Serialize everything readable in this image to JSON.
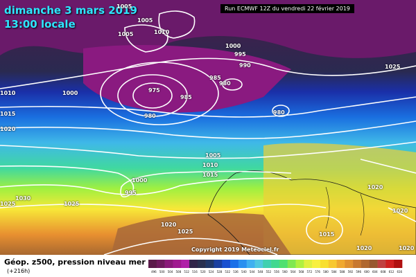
{
  "header": {
    "date_line": "dimanche 3 mars 2019",
    "time_line": "13:00 locale",
    "run_info": "Run ECMWF 12Z du vendredi 22 février 2019"
  },
  "map": {
    "copyright": "Copyright 2019 Meteociel.fr",
    "isobar_labels": [
      {
        "text": "1005"
      },
      {
        "text": "1005"
      },
      {
        "text": "1010"
      },
      {
        "text": "1005"
      },
      {
        "text": "1000"
      },
      {
        "text": "995"
      },
      {
        "text": "990"
      },
      {
        "text": "985"
      },
      {
        "text": "1000"
      },
      {
        "text": "975"
      },
      {
        "text": "985"
      },
      {
        "text": "980"
      },
      {
        "text": "980"
      },
      {
        "text": "980"
      },
      {
        "text": "1010"
      },
      {
        "text": "1015"
      },
      {
        "text": "1020"
      },
      {
        "text": "1005"
      },
      {
        "text": "1010"
      },
      {
        "text": "1015"
      },
      {
        "text": "1000"
      },
      {
        "text": "995"
      },
      {
        "text": "1030"
      },
      {
        "text": "1025"
      },
      {
        "text": "1025"
      },
      {
        "text": "1020"
      },
      {
        "text": "1025"
      },
      {
        "text": "1020"
      },
      {
        "text": "1020"
      },
      {
        "text": "1020"
      },
      {
        "text": "1015"
      },
      {
        "text": "1020"
      },
      {
        "text": "1025"
      }
    ]
  },
  "legend": {
    "title": "Géop. z500, pression niveau mer",
    "subtitle": "(+216h)",
    "colors": [
      "#5a1a4a",
      "#6e1a5e",
      "#8a1a7a",
      "#a01a90",
      "#b020a8",
      "#30254a",
      "#283050",
      "#203868",
      "#1a40a0",
      "#1a50d0",
      "#1a70e8",
      "#2a90f0",
      "#40b0f0",
      "#50c8e0",
      "#40d0b0",
      "#40d890",
      "#50e070",
      "#80e850",
      "#b0f040",
      "#e0f040",
      "#f8f040",
      "#f8e030",
      "#f8c830",
      "#f0a830",
      "#e09030",
      "#c87830",
      "#b06830",
      "#985830",
      "#c04040",
      "#d02020",
      "#b01010"
    ],
    "ticks": [
      "496",
      "500",
      "504",
      "508",
      "512",
      "516",
      "520",
      "524",
      "528",
      "532",
      "536",
      "540",
      "544",
      "548",
      "552",
      "556",
      "560",
      "564",
      "568",
      "572",
      "576",
      "580",
      "584",
      "588",
      "592",
      "596",
      "600",
      "604",
      "608",
      "612",
      "616"
    ]
  }
}
